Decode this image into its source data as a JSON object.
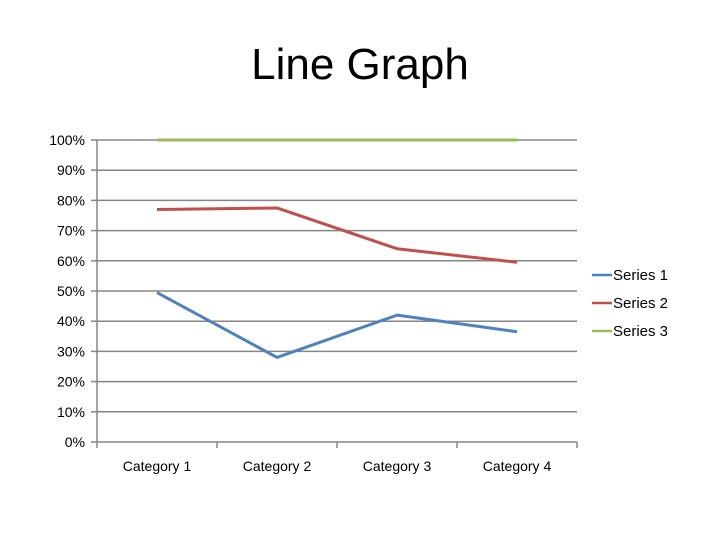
{
  "chart_data": {
    "type": "line",
    "title": "Line Graph",
    "xlabel": "",
    "ylabel": "",
    "categories": [
      "Category 1",
      "Category 2",
      "Category 3",
      "Category 4"
    ],
    "ylim": [
      0,
      100
    ],
    "yticks": [
      "0%",
      "10%",
      "20%",
      "30%",
      "40%",
      "50%",
      "60%",
      "70%",
      "80%",
      "90%",
      "100%"
    ],
    "grid": true,
    "legend": "right",
    "series": [
      {
        "name": "Series 1",
        "values": [
          49.5,
          28,
          42,
          36.5
        ],
        "color": "#4F81BD"
      },
      {
        "name": "Series 2",
        "values": [
          77,
          77.5,
          64,
          59.5
        ],
        "color": "#C0504D"
      },
      {
        "name": "Series 3",
        "values": [
          100,
          100,
          100,
          100
        ],
        "color": "#9BBB59"
      }
    ]
  }
}
